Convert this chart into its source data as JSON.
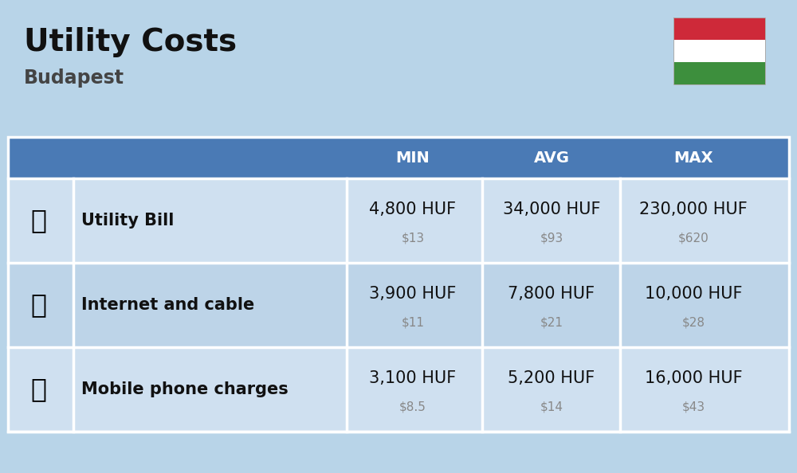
{
  "title": "Utility Costs",
  "subtitle": "Budapest",
  "background_color": "#b8d4e8",
  "header_bg_color": "#4a7ab5",
  "header_text_color": "#ffffff",
  "row_bg_color_1": "#cfe0f0",
  "row_bg_color_2": "#bdd4e8",
  "divider_color": "#ffffff",
  "col_headers": [
    "MIN",
    "AVG",
    "MAX"
  ],
  "rows": [
    {
      "label": "Utility Bill",
      "min_huf": "4,800 HUF",
      "min_usd": "$13",
      "avg_huf": "34,000 HUF",
      "avg_usd": "$93",
      "max_huf": "230,000 HUF",
      "max_usd": "$620"
    },
    {
      "label": "Internet and cable",
      "min_huf": "3,900 HUF",
      "min_usd": "$11",
      "avg_huf": "7,800 HUF",
      "avg_usd": "$21",
      "max_huf": "10,000 HUF",
      "max_usd": "$28"
    },
    {
      "label": "Mobile phone charges",
      "min_huf": "3,100 HUF",
      "min_usd": "$8.5",
      "avg_huf": "5,200 HUF",
      "avg_usd": "$14",
      "max_huf": "16,000 HUF",
      "max_usd": "$43"
    }
  ],
  "flag_colors": [
    "#ce2939",
    "#ffffff",
    "#3d8f3d"
  ],
  "huf_fontsize": 15,
  "usd_fontsize": 11,
  "label_fontsize": 15,
  "header_fontsize": 14,
  "title_fontsize": 28,
  "subtitle_fontsize": 17
}
